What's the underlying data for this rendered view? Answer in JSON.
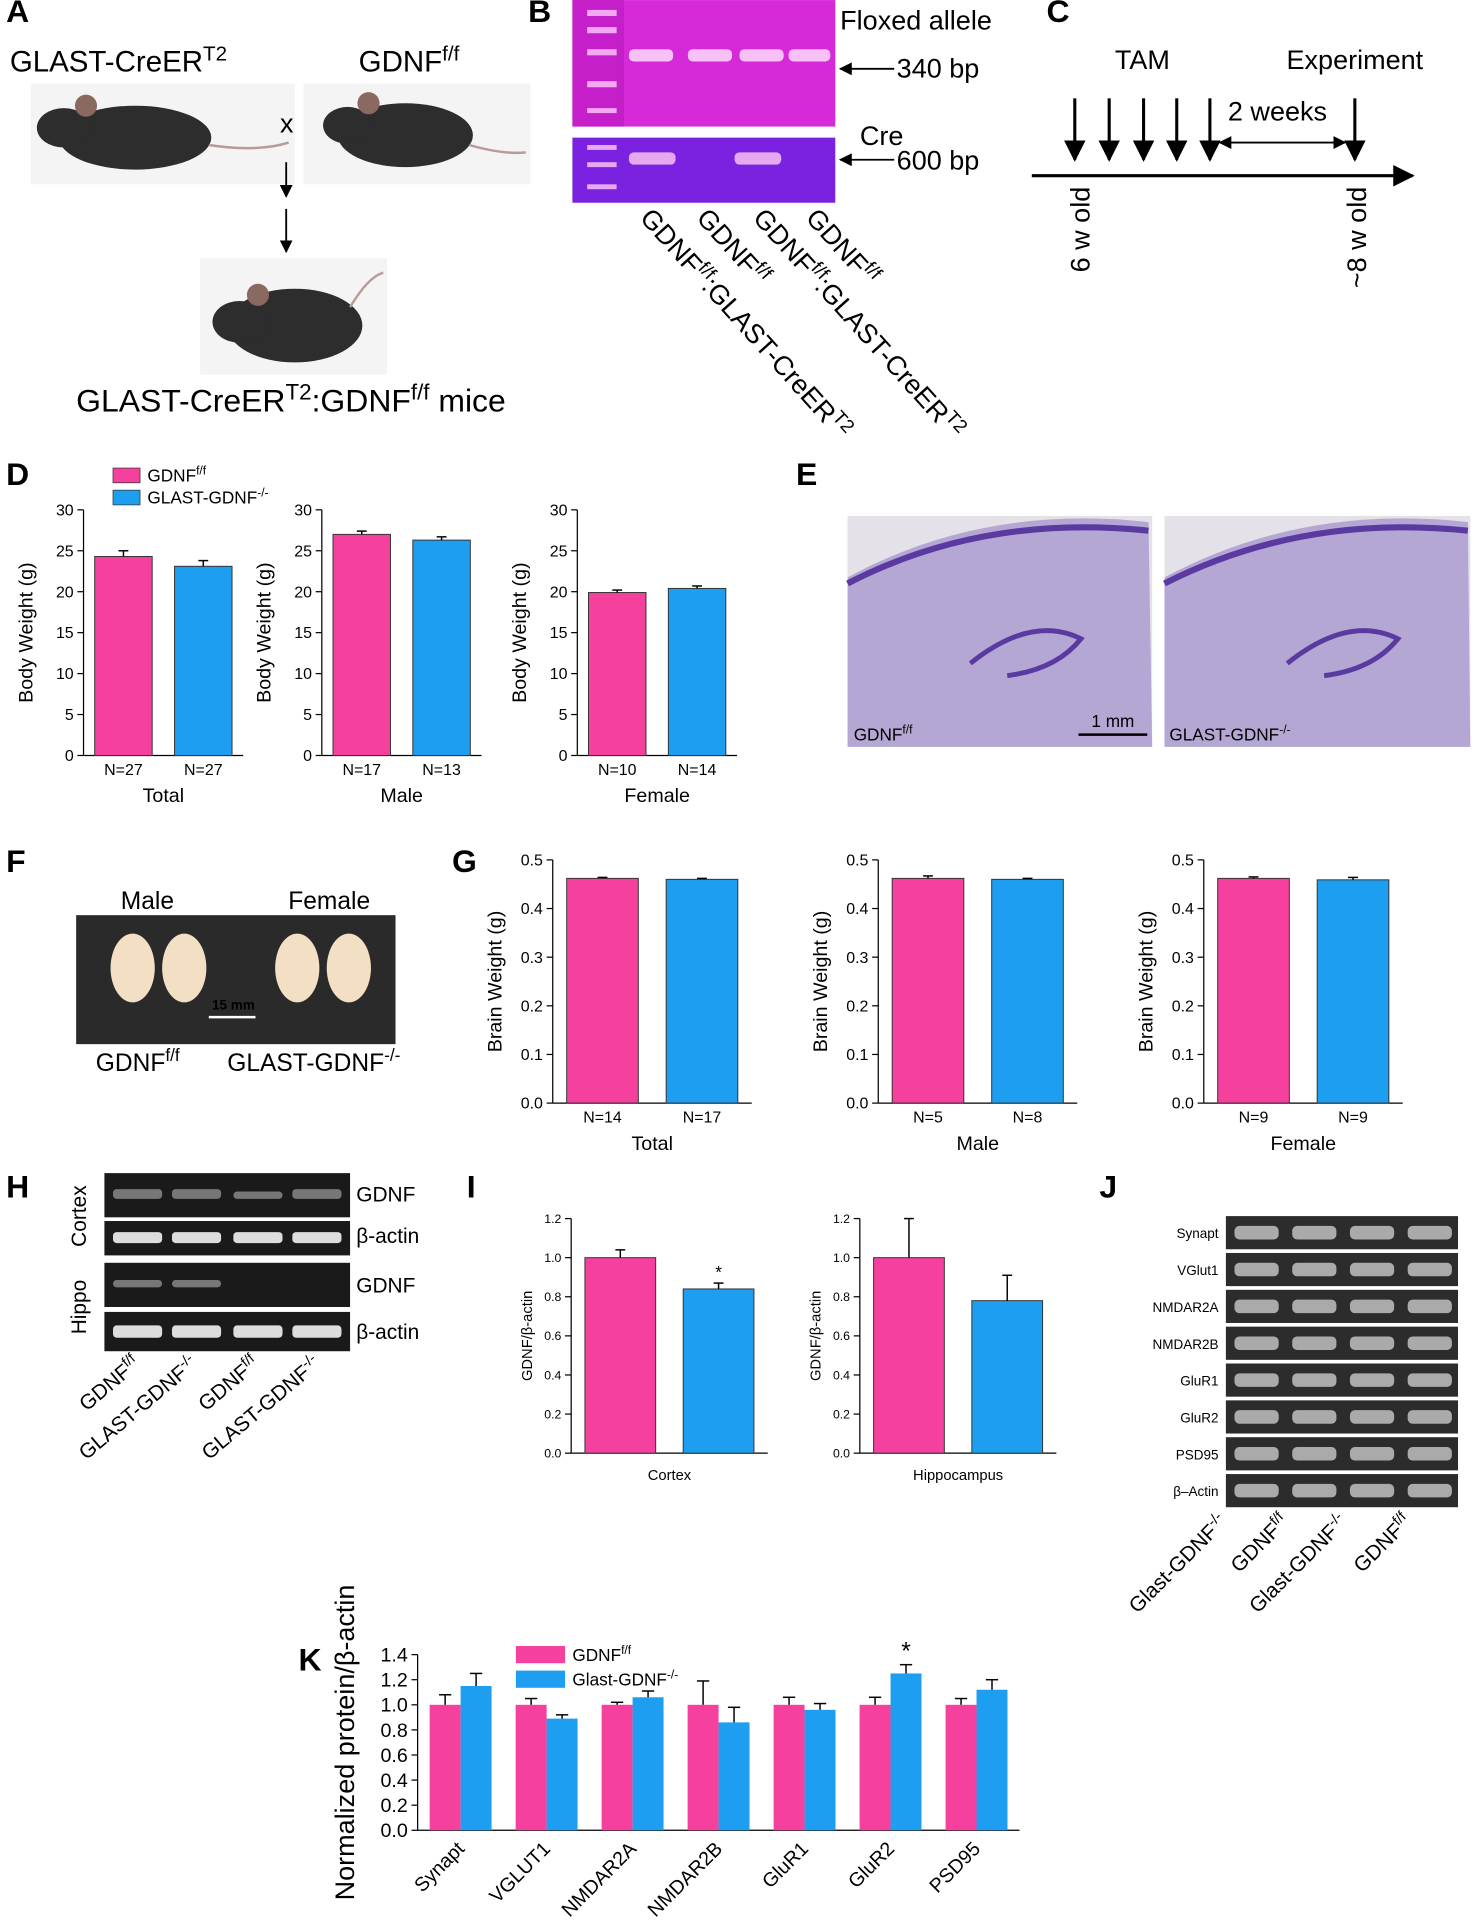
{
  "panels": {
    "letters": [
      "A",
      "B",
      "C",
      "D",
      "E",
      "F",
      "G",
      "H",
      "I",
      "J",
      "K"
    ],
    "A": {
      "left": [
        {
          "t": "GLAST-CreER"
        },
        {
          "sup": "T2"
        }
      ],
      "right": [
        {
          "t": "GDNF"
        },
        {
          "sup": "f/f"
        }
      ],
      "cross": "x",
      "result": [
        {
          "t": "GLAST-CreER"
        },
        {
          "sup": "T2"
        },
        {
          "t": ":GDNF"
        },
        {
          "sup": "f/f"
        },
        {
          "t": " mice"
        }
      ]
    },
    "B": {
      "floxed": "Floxed allele",
      "floxed_size": "340 bp",
      "cre": "Cre",
      "cre_size": "600 bp",
      "lanes": [
        [
          {
            "t": "GDNF"
          },
          {
            "sup": "f/f"
          },
          {
            "t": ":GLAST-CreER"
          },
          {
            "sup": "T2"
          }
        ],
        [
          {
            "t": "GDNF"
          },
          {
            "sup": "f/f"
          }
        ],
        [
          {
            "t": "GDNF"
          },
          {
            "sup": "f/f"
          },
          {
            "t": ":GLAST-CreER"
          },
          {
            "sup": "T2"
          }
        ],
        [
          {
            "t": "GDNF"
          },
          {
            "sup": "f/f"
          }
        ]
      ]
    },
    "C": {
      "tam": "TAM",
      "experiment": "Experiment",
      "interval": "2 weeks",
      "start": "6 w old",
      "end": "~8 w old"
    },
    "E": {
      "left": [
        {
          "t": "GDNF"
        },
        {
          "sup": "f/f"
        }
      ],
      "right": [
        {
          "t": "GLAST-GDNF"
        },
        {
          "sup": "-/-"
        }
      ],
      "scale": "1 mm"
    },
    "F": {
      "male": "Male",
      "female": "Female",
      "scale": "15 mm",
      "left": [
        {
          "t": "GDNF"
        },
        {
          "sup": "f/f"
        }
      ],
      "right": [
        {
          "t": "GLAST-GDNF"
        },
        {
          "sup": "-/-"
        }
      ]
    },
    "H": {
      "regions": [
        "Cortex",
        "Hippo"
      ],
      "bands": [
        "GDNF",
        "β-actin",
        "GDNF",
        "β-actin"
      ],
      "lanes": [
        [
          {
            "t": "GDNF"
          },
          {
            "sup": "f/f"
          }
        ],
        [
          {
            "t": "GLAST-GDNF"
          },
          {
            "sup": "-/-"
          }
        ],
        [
          {
            "t": "GDNF"
          },
          {
            "sup": "f/f"
          }
        ],
        [
          {
            "t": "GLAST-GDNF"
          },
          {
            "sup": "-/-"
          }
        ]
      ]
    },
    "J": {
      "bands": [
        "Synapt",
        "VGlut1",
        "NMDAR2A",
        "NMDAR2B",
        "GluR1",
        "GluR2",
        "PSD95",
        "β–Actin"
      ],
      "lanes": [
        [
          {
            "t": "Glast-GDNF"
          },
          {
            "sup": "-/-"
          }
        ],
        [
          {
            "t": "GDNF"
          },
          {
            "sup": "f/f"
          }
        ],
        [
          {
            "t": "Glast-GDNF"
          },
          {
            "sup": "-/-"
          }
        ],
        [
          {
            "t": "GDNF"
          },
          {
            "sup": "f/f"
          }
        ]
      ]
    }
  },
  "chart_data": [
    {
      "type": "bar",
      "ylabel": "Body Weight (g)",
      "xlabel": "Total",
      "categories": [
        "N=27",
        "N=27"
      ],
      "values": [
        24.3,
        23.1
      ],
      "errors": [
        0.7,
        0.7
      ],
      "colors": [
        "#f5409d",
        "#1e9ef0"
      ],
      "ylim": [
        0,
        30
      ],
      "yticks": [
        0,
        5,
        10,
        15,
        20,
        25,
        30
      ],
      "legend": [
        {
          "name": "GDNF",
          "sup": "f/f",
          "color": "#f5409d"
        },
        {
          "name": "GLAST-GDNF",
          "sup": "-/-",
          "color": "#1e9ef0"
        }
      ]
    },
    {
      "type": "bar",
      "ylabel": "Body Weight (g)",
      "xlabel": "Male",
      "categories": [
        "N=17",
        "N=13"
      ],
      "values": [
        27.0,
        26.3
      ],
      "errors": [
        0.4,
        0.4
      ],
      "colors": [
        "#f5409d",
        "#1e9ef0"
      ],
      "ylim": [
        0,
        30
      ],
      "yticks": [
        0,
        5,
        10,
        15,
        20,
        25,
        30
      ]
    },
    {
      "type": "bar",
      "ylabel": "Body Weight (g)",
      "xlabel": "Female",
      "categories": [
        "N=10",
        "N=14"
      ],
      "values": [
        19.9,
        20.4
      ],
      "errors": [
        0.3,
        0.3
      ],
      "colors": [
        "#f5409d",
        "#1e9ef0"
      ],
      "ylim": [
        0,
        30
      ],
      "yticks": [
        0,
        5,
        10,
        15,
        20,
        25,
        30
      ]
    },
    {
      "type": "bar",
      "ylabel": "Brain Weight (g)",
      "xlabel": "Total",
      "categories": [
        "N=14",
        "N=17"
      ],
      "values": [
        0.462,
        0.46
      ],
      "errors": [
        0.002,
        0.002
      ],
      "colors": [
        "#f5409d",
        "#1e9ef0"
      ],
      "ylim": [
        0,
        0.5
      ],
      "yticks": [
        {
          "value": 0,
          "label": "0.0"
        },
        0.1,
        0.2,
        0.3,
        0.4,
        0.5
      ]
    },
    {
      "type": "bar",
      "ylabel": "Brain Weight (g)",
      "xlabel": "Male",
      "categories": [
        "N=5",
        "N=8"
      ],
      "values": [
        0.462,
        0.46
      ],
      "errors": [
        0.005,
        0.002
      ],
      "colors": [
        "#f5409d",
        "#1e9ef0"
      ],
      "ylim": [
        0,
        0.5
      ],
      "yticks": [
        {
          "value": 0,
          "label": "0.0"
        },
        0.1,
        0.2,
        0.3,
        0.4,
        0.5
      ]
    },
    {
      "type": "bar",
      "ylabel": "Brain Weight (g)",
      "xlabel": "Female",
      "categories": [
        "N=9",
        "N=9"
      ],
      "values": [
        0.462,
        0.459
      ],
      "errors": [
        0.003,
        0.005
      ],
      "colors": [
        "#f5409d",
        "#1e9ef0"
      ],
      "ylim": [
        0,
        0.5
      ],
      "yticks": [
        {
          "value": 0,
          "label": "0.0"
        },
        0.1,
        0.2,
        0.3,
        0.4,
        0.5
      ]
    },
    {
      "type": "bar",
      "ylabel": "GDNF/β-actin",
      "xlabel": "Cortex",
      "values": [
        1.0,
        0.84
      ],
      "errors": [
        0.04,
        0.03
      ],
      "marks": [
        null,
        "*"
      ],
      "colors": [
        "#f5409d",
        "#1e9ef0"
      ],
      "ylim": [
        0,
        1.2
      ],
      "yticks": [
        {
          "value": 0,
          "label": "0.0"
        },
        0.2,
        0.4,
        0.6,
        0.8,
        {
          "value": 1,
          "label": "1.0"
        },
        1.2
      ]
    },
    {
      "type": "bar",
      "ylabel": "GDNF/β-actin",
      "xlabel": "Hippocampus",
      "values": [
        1.0,
        0.78
      ],
      "errors": [
        0.2,
        0.13
      ],
      "colors": [
        "#f5409d",
        "#1e9ef0"
      ],
      "ylim": [
        0,
        1.2
      ],
      "yticks": [
        {
          "value": 0,
          "label": "0.0"
        },
        0.2,
        0.4,
        0.6,
        0.8,
        {
          "value": 1,
          "label": "1.0"
        },
        1.2
      ]
    },
    {
      "type": "grouped-bar",
      "ylabel": "Normalized protein/β-actin",
      "categories": [
        "Synapt",
        "VGLUT1",
        "NMDAR2A",
        "NMDAR2B",
        "GluR1",
        "GluR2",
        "PSD95"
      ],
      "series": [
        {
          "name": "GDNF",
          "sup": "f/f",
          "color": "#f5409d",
          "values": [
            1,
            1,
            1,
            1,
            1,
            1,
            1
          ],
          "errors": [
            0.08,
            0.05,
            0.02,
            0.19,
            0.06,
            0.06,
            0.05
          ]
        },
        {
          "name": "Glast-GDNF",
          "sup": "-/-",
          "color": "#1e9ef0",
          "values": [
            1.15,
            0.89,
            1.06,
            0.86,
            0.96,
            1.25,
            1.12
          ],
          "errors": [
            0.1,
            0.03,
            0.05,
            0.12,
            0.05,
            0.07,
            0.08
          ],
          "marks": [
            null,
            null,
            null,
            null,
            null,
            "*",
            null
          ]
        }
      ],
      "ylim": [
        0,
        1.4
      ],
      "yticks": [
        {
          "value": 0,
          "label": "0.0"
        },
        0.2,
        0.4,
        0.6,
        0.8,
        {
          "value": 1,
          "label": "1.0"
        },
        1.2,
        1.4
      ]
    }
  ]
}
